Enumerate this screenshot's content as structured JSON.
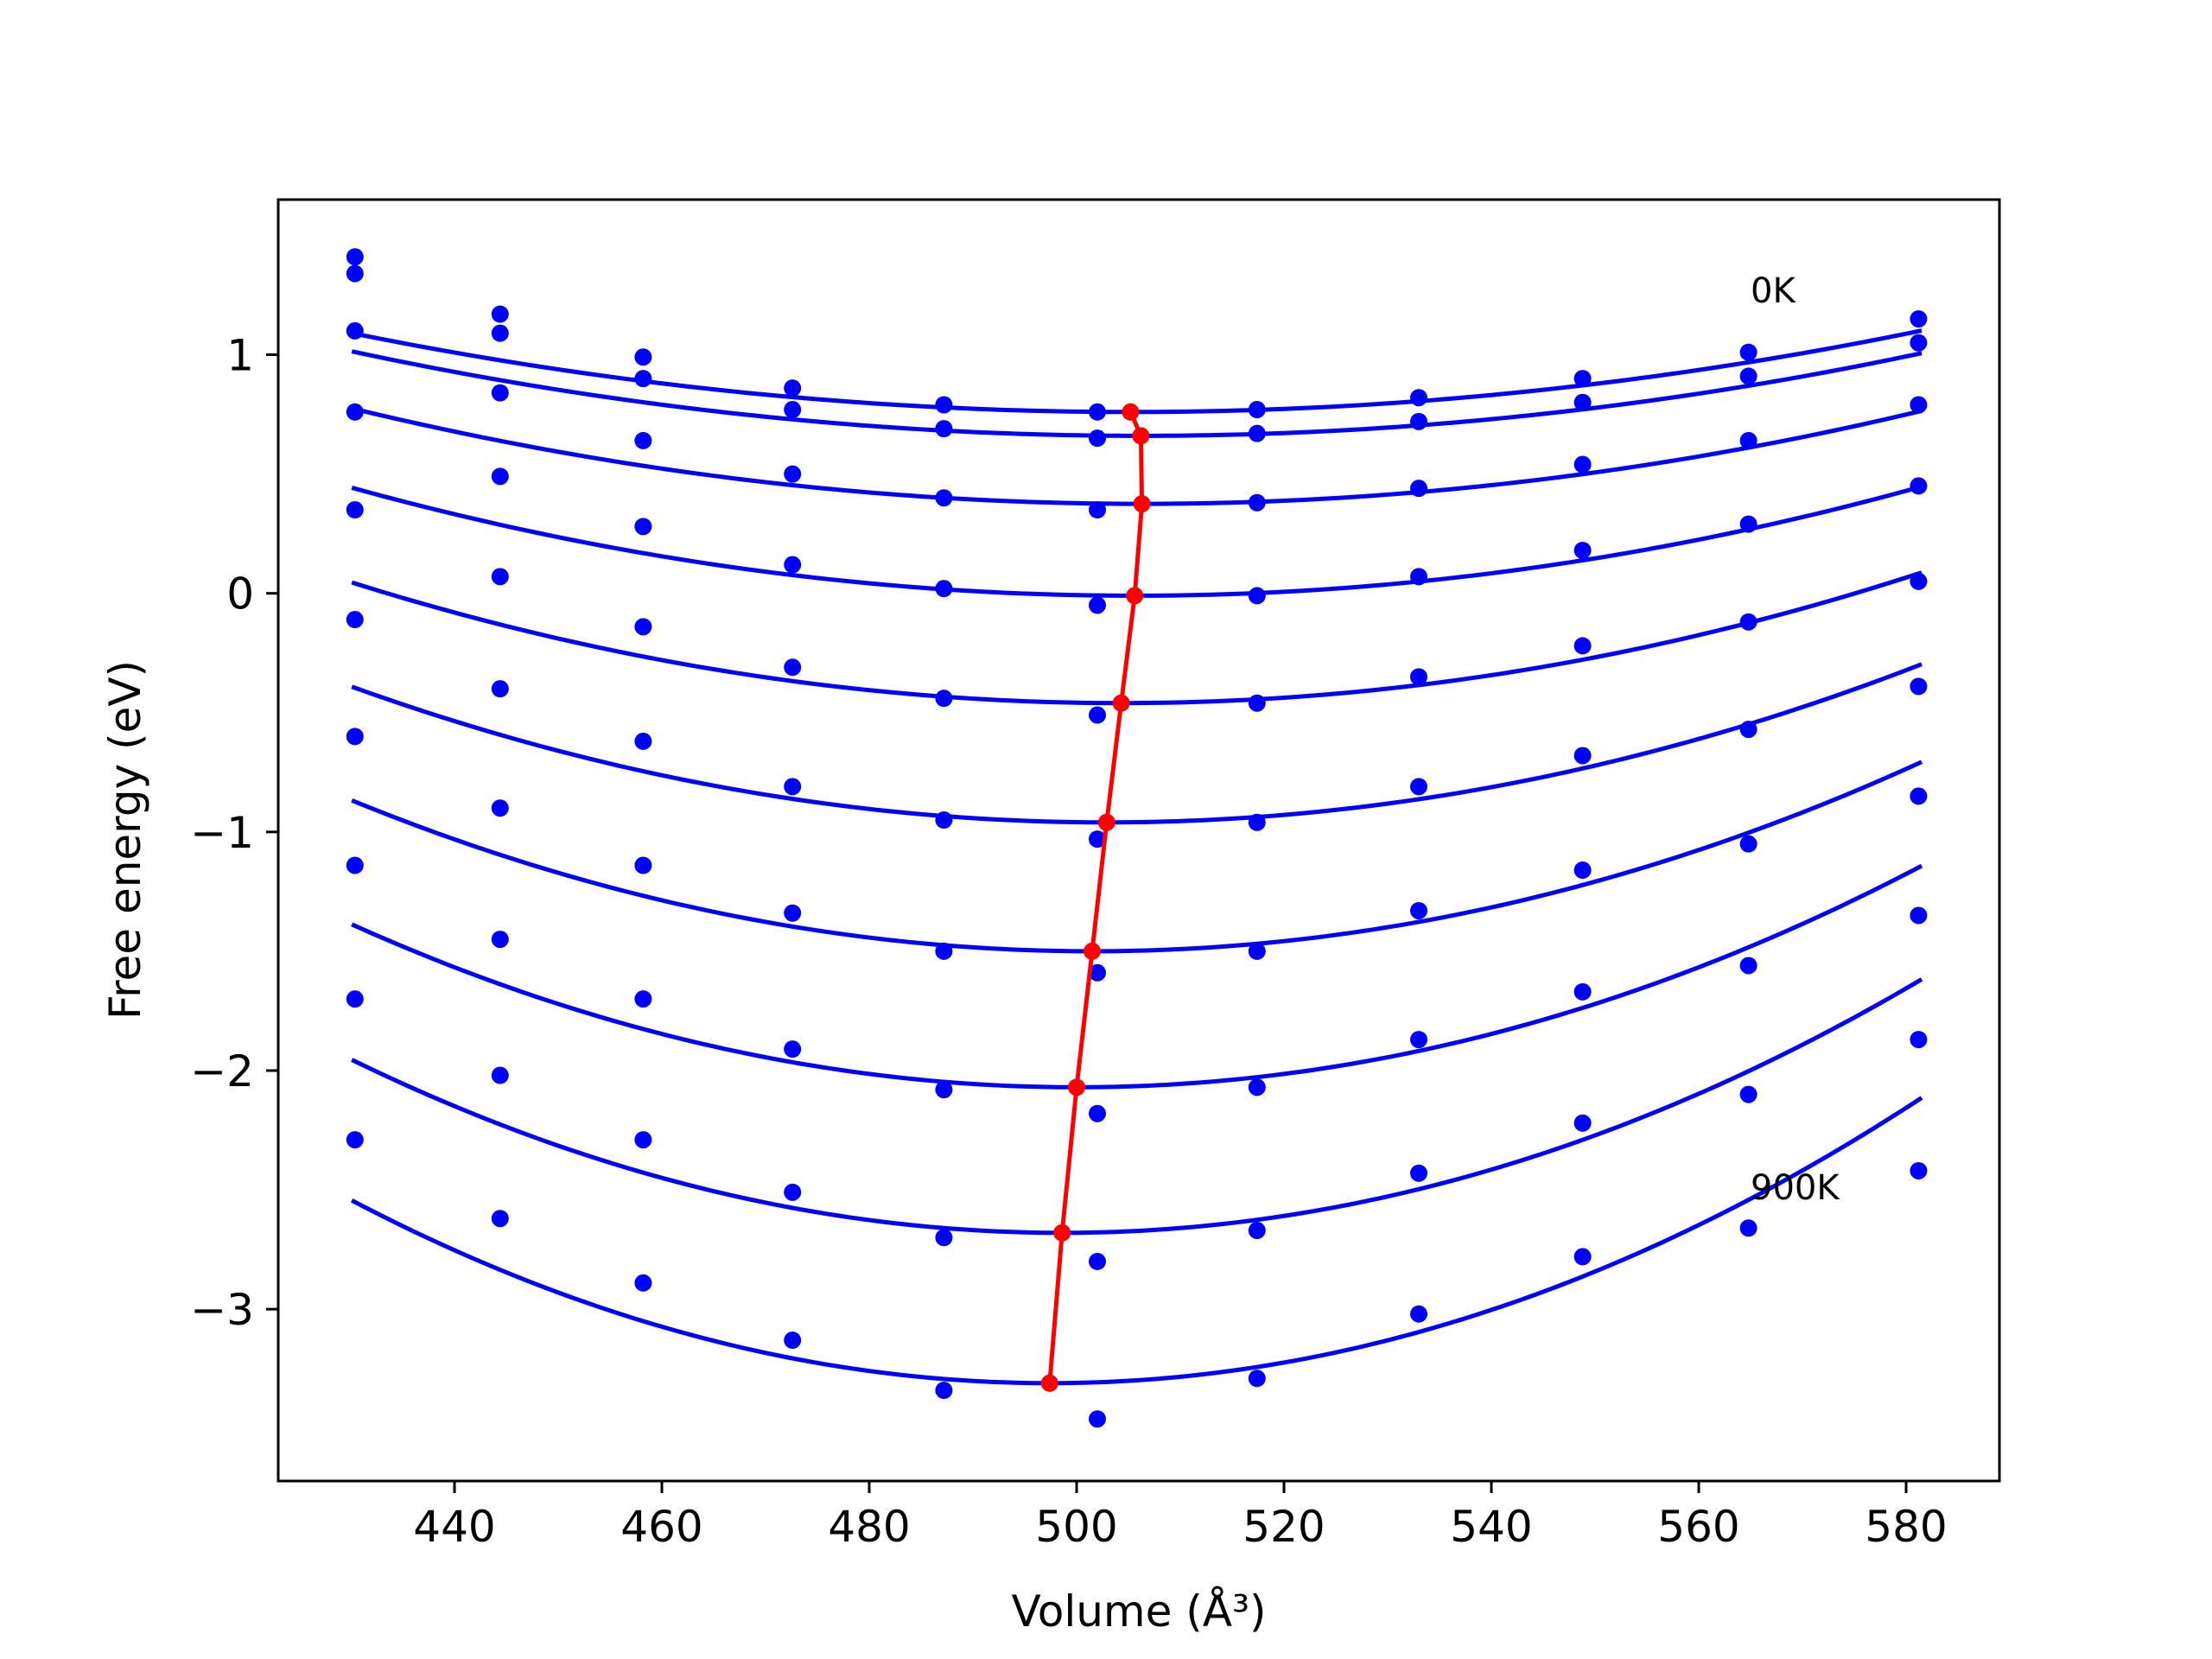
{
  "chart_data": {
    "type": "line",
    "xlabel": "Volume (Å³)",
    "ylabel": "Free energy (eV)",
    "xlim": [
      423,
      589
    ],
    "ylim": [
      -3.72,
      1.65
    ],
    "xticks": [
      440,
      460,
      480,
      500,
      520,
      540,
      560,
      580
    ],
    "yticks": [
      -3,
      -2,
      -1,
      0,
      1
    ],
    "xtick_labels": [
      "440",
      "460",
      "480",
      "500",
      "520",
      "540",
      "560",
      "580"
    ],
    "ytick_labels": [
      "−3",
      "−2",
      "−1",
      "0",
      "1"
    ],
    "grid": false,
    "colors": {
      "points": "#0000ff",
      "fits": "#0000ff",
      "minimum_line": "#ff0000"
    },
    "annotations": [
      {
        "text": "0K",
        "x": 565,
        "y": 1.22
      },
      {
        "text": "900K",
        "x": 565,
        "y": -2.54
      }
    ],
    "volumes": [
      430.4,
      444.4,
      458.2,
      472.6,
      487.2,
      502.0,
      517.4,
      533.0,
      548.8,
      564.8,
      581.2
    ],
    "series": [
      {
        "values": [
          1.41,
          1.17,
          0.99,
          0.86,
          0.79,
          0.76,
          0.77,
          0.82,
          0.9,
          1.01,
          1.15
        ],
        "fit": {
          "vmin": 505.2,
          "fmin": 0.76,
          "a": 5.86e-05,
          "b": 0.0
        }
      },
      {
        "values": [
          1.34,
          1.09,
          0.9,
          0.77,
          0.69,
          0.65,
          0.67,
          0.72,
          0.8,
          0.91,
          1.05
        ],
        "fit": {
          "vmin": 506.2,
          "fmin": 0.66,
          "a": 6.11e-05,
          "b": 0.0
        }
      },
      {
        "values": [
          1.1,
          0.84,
          0.64,
          0.5,
          0.4,
          0.35,
          0.38,
          0.44,
          0.54,
          0.64,
          0.79
        ],
        "fit": {
          "vmin": 506.3,
          "fmin": 0.375,
          "a": 6.89e-05,
          "b": 0.0
        }
      },
      {
        "values": [
          0.76,
          0.49,
          0.28,
          0.12,
          0.02,
          -0.05,
          -0.01,
          0.07,
          0.18,
          0.29,
          0.45
        ],
        "fit": {
          "vmin": 505.6,
          "fmin": -0.01,
          "a": 7.94e-05,
          "b": 0.0
        }
      },
      {
        "values": [
          0.35,
          0.07,
          -0.14,
          -0.31,
          -0.44,
          -0.51,
          -0.46,
          -0.35,
          -0.22,
          -0.12,
          0.05
        ],
        "fit": {
          "vmin": 504.3,
          "fmin": -0.46,
          "a": 9.18e-05,
          "b": 0.0
        }
      },
      {
        "values": [
          -0.11,
          -0.4,
          -0.62,
          -0.81,
          -0.95,
          -1.03,
          -0.96,
          -0.81,
          -0.68,
          -0.57,
          -0.39
        ],
        "fit": {
          "vmin": 502.9,
          "fmin": -0.96,
          "a": 0.0001073,
          "b": 0.0
        }
      },
      {
        "values": [
          -0.6,
          -0.9,
          -1.14,
          -1.34,
          -1.5,
          -1.59,
          -1.5,
          -1.33,
          -1.16,
          -1.05,
          -0.85
        ],
        "fit": {
          "vmin": 501.5,
          "fmin": -1.5,
          "a": 0.000124,
          "b": 0.0
        }
      },
      {
        "values": [
          -1.14,
          -1.45,
          -1.7,
          -1.91,
          -2.08,
          -2.18,
          -2.07,
          -1.87,
          -1.67,
          -1.56,
          -1.35
        ],
        "fit": {
          "vmin": 500.0,
          "fmin": -2.07,
          "a": 0.0001397,
          "b": 0.0
        }
      },
      {
        "values": [
          -1.7,
          -2.02,
          -2.29,
          -2.51,
          -2.7,
          -2.8,
          -2.67,
          -2.43,
          -2.22,
          -2.1,
          -1.87
        ],
        "fit": {
          "vmin": 498.6,
          "fmin": -2.68,
          "a": 0.0001546,
          "b": 0.0
        }
      },
      {
        "values": [
          -2.29,
          -2.62,
          -2.89,
          -3.13,
          -3.34,
          -3.46,
          -3.29,
          -3.02,
          -2.78,
          -2.66,
          -2.42
        ],
        "fit": {
          "vmin": 497.4,
          "fmin": -3.31,
          "a": 0.0001691,
          "b": 0.0
        }
      }
    ],
    "minimum_curve": {
      "x": [
        505.2,
        506.2,
        506.3,
        505.6,
        504.3,
        502.9,
        501.5,
        500.0,
        498.6,
        497.4
      ],
      "y": [
        0.76,
        0.66,
        0.375,
        -0.01,
        -0.46,
        -0.96,
        -1.5,
        -2.07,
        -2.68,
        -3.31
      ]
    }
  }
}
